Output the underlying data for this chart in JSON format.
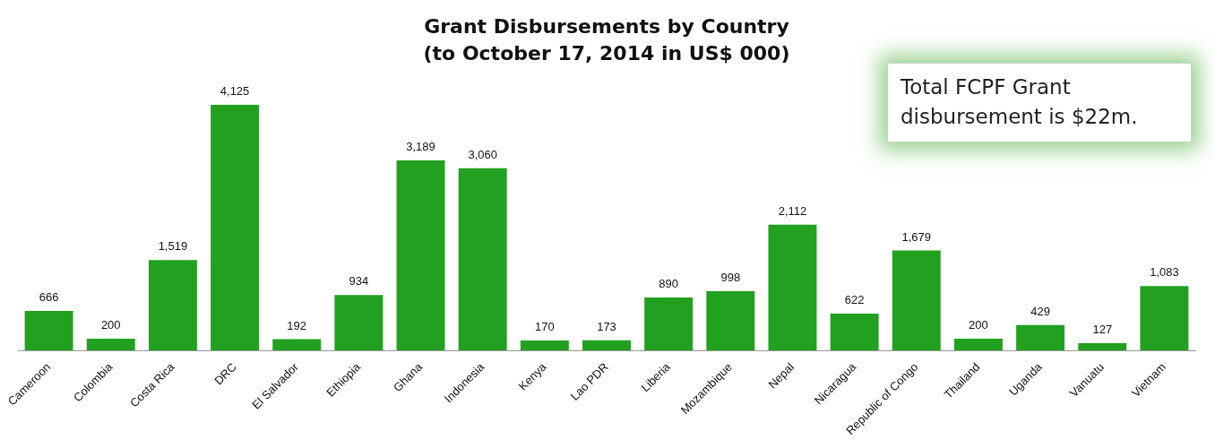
{
  "chart_data": {
    "type": "bar",
    "title": "Grant Disbursements by Country",
    "subtitle": "(to October 17, 2014 in US$ 000)",
    "categories": [
      "Cameroon",
      "Colombia",
      "Costa Rica",
      "DRC",
      "El Salvador",
      "Ethiopia",
      "Ghana",
      "Indonesia",
      "Kenya",
      "Lao PDR",
      "Liberia",
      "Mozambique",
      "Nepal",
      "Nicaragua",
      "Republic of Congo",
      "Thailand",
      "Uganda",
      "Vanuatu",
      "Vietnam"
    ],
    "values": [
      666,
      200,
      1519,
      4125,
      192,
      934,
      3189,
      3060,
      170,
      173,
      890,
      998,
      2112,
      622,
      1679,
      200,
      429,
      127,
      1083
    ],
    "value_labels": [
      "666",
      "200",
      "1,519",
      "4,125",
      "192",
      "934",
      "3,189",
      "3,060",
      "170",
      "173",
      "890",
      "998",
      "2,112",
      "622",
      "1,679",
      "200",
      "429",
      "127",
      "1,083"
    ],
    "color": "#22a120",
    "annotations": [
      "Total FCPF Grant disbursement is $22m."
    ]
  }
}
